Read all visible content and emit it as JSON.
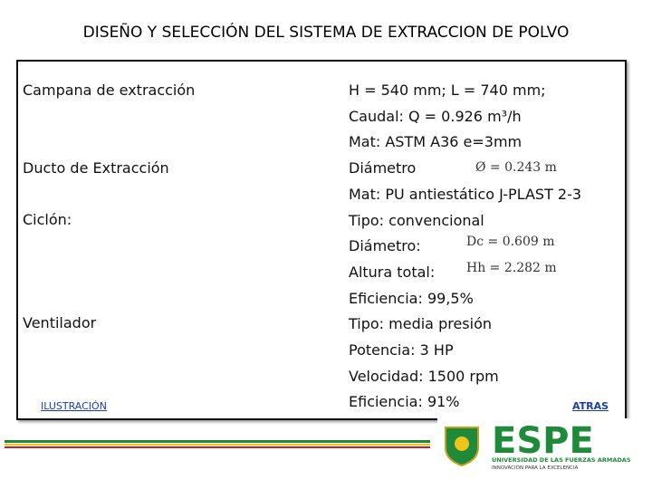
{
  "header": {
    "title": "DISEÑO Y SELECCIÓN DEL SISTEMA DE EXTRACCION DE POLVO"
  },
  "left_labels": [
    "Campana de extracción",
    "Ducto de Extracción",
    "Ciclón:",
    "Ventilador"
  ],
  "details": [
    "H = 540 mm; L = 740 mm;",
    "Caudal:  Q = 0.926 m³/h",
    "Mat: ASTM A36   e=3mm",
    "Diámetro",
    "Mat:   PU antiestático J-PLAST 2-3",
    "Tipo: convencional",
    "Diámetro:",
    "Altura total:",
    "Eficiencia: 99,5%",
    "Tipo: media presión",
    "Potencia: 3 HP",
    "Velocidad: 1500 rpm",
    "Eficiencia: 91%"
  ],
  "formulas": [
    "Ø = 0.243 m",
    "Dc = 0.609 m",
    "Hh = 2.282 m"
  ],
  "links": {
    "illustration": "ILUSTRACIÓN",
    "back": "ATRAS"
  },
  "logo": {
    "name": "ESPE",
    "university": "UNIVERSIDAD DE LAS FUERZAS ARMADAS",
    "motto": "INNOVACIÓN PARA LA EXCELENCIA"
  }
}
